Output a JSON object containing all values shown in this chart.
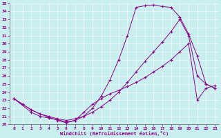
{
  "background_color": "#c8eef0",
  "line_color": "#880088",
  "xlabel": "Windchill (Refroidissement éolien,°C)",
  "xlim": [
    -0.5,
    23.5
  ],
  "ylim": [
    20,
    35
  ],
  "yticks": [
    20,
    21,
    22,
    23,
    24,
    25,
    26,
    27,
    28,
    29,
    30,
    31,
    32,
    33,
    34,
    35
  ],
  "xticks": [
    0,
    1,
    2,
    3,
    4,
    5,
    6,
    7,
    8,
    9,
    10,
    11,
    12,
    13,
    14,
    15,
    16,
    17,
    18,
    19,
    20,
    21,
    22,
    23
  ],
  "line1_x": [
    0,
    1,
    2,
    3,
    4,
    5,
    6,
    7,
    8,
    9,
    10,
    11,
    12,
    13,
    14,
    15,
    16,
    17,
    18,
    19,
    20,
    21,
    22,
    23
  ],
  "line1_y": [
    23.2,
    22.5,
    21.8,
    21.3,
    20.9,
    20.5,
    20.2,
    20.5,
    21.0,
    22.0,
    23.5,
    25.5,
    28.0,
    31.0,
    34.5,
    34.7,
    34.8,
    34.6,
    34.5,
    33.3,
    31.2,
    28.5,
    25.0,
    24.5
  ],
  "line2_x": [
    0,
    1,
    2,
    3,
    4,
    5,
    6,
    7,
    8,
    9,
    10,
    11,
    12,
    13,
    14,
    15,
    16,
    17,
    18,
    19,
    20,
    21,
    22,
    23
  ],
  "line2_y": [
    23.2,
    22.5,
    21.8,
    21.3,
    21.0,
    20.7,
    20.5,
    20.7,
    21.0,
    21.5,
    22.2,
    23.0,
    24.0,
    25.2,
    26.5,
    27.8,
    29.0,
    30.2,
    31.5,
    33.0,
    31.0,
    26.0,
    25.0,
    24.5
  ],
  "line3_x": [
    0,
    2,
    3,
    4,
    5,
    6,
    7,
    8,
    9,
    10,
    11,
    12,
    13,
    14,
    15,
    16,
    17,
    18,
    19,
    20,
    21,
    22,
    23
  ],
  "line3_y": [
    23.2,
    21.5,
    21.0,
    20.8,
    20.6,
    20.3,
    20.5,
    21.5,
    22.5,
    23.2,
    23.8,
    24.2,
    24.7,
    25.2,
    25.8,
    26.5,
    27.2,
    28.0,
    29.0,
    30.0,
    23.0,
    24.5,
    24.8
  ]
}
